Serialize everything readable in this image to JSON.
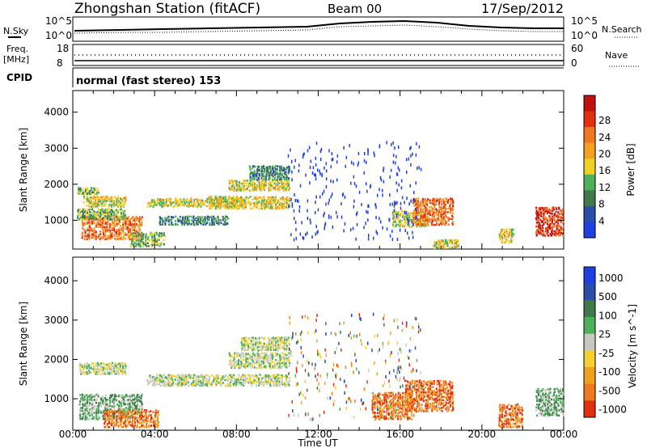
{
  "header": {
    "station": "Zhongshan Station (fitACF)",
    "beam": "Beam 00",
    "date": "17/Sep/2012"
  },
  "noise_panel": {
    "left_label": "N.Sky",
    "left_ticks": [
      "10^5",
      "10^0"
    ],
    "right_label": "N.Search",
    "right_ticks": [
      "10^5",
      "10^0"
    ]
  },
  "freq_panel": {
    "left_label_top": "Freq.",
    "left_label_unit": "[MHz]",
    "left_ticks": [
      "18",
      "8"
    ],
    "right_label": "Nave",
    "right_ticks": [
      "60",
      "0"
    ]
  },
  "cpid_panel": {
    "label": "CPID",
    "text": "normal (fast stereo) 153"
  },
  "x_axis": {
    "label": "Time UT",
    "ticks": [
      "00:00",
      "04:00",
      "08:00",
      "12:00",
      "16:00",
      "20:00",
      "00:00"
    ]
  },
  "colors": {
    "power_scale": [
      "#1f3fe0",
      "#2a4fa8",
      "#3f7a4a",
      "#4fb05a",
      "#f0d020",
      "#f5a020",
      "#f07820",
      "#e03010",
      "#c01010"
    ],
    "velocity_scale": [
      "#1f3fe0",
      "#2a4fa8",
      "#3f7a4a",
      "#4fb05a",
      "#c8c8c0",
      "#f5d030",
      "#f0a020",
      "#f07820",
      "#e03010"
    ]
  },
  "chart_data": [
    {
      "type": "heatmap",
      "title": "",
      "xlabel": "Time UT",
      "ylabel": "Slant Range [km]",
      "xlim": [
        0,
        24
      ],
      "ylim": [
        200,
        4600
      ],
      "y_ticks": [
        1000,
        2000,
        3000,
        4000
      ],
      "colorbar_label": "Power [dB]",
      "colorbar_ticks": [
        "4",
        "8",
        "12",
        "16",
        "20",
        "24",
        "28"
      ],
      "blobs": [
        {
          "x0": 0.4,
          "x1": 3.4,
          "y0": 500,
          "y1": 1150,
          "level": 6
        },
        {
          "x0": 0.2,
          "x1": 2.6,
          "y0": 1050,
          "y1": 1350,
          "level": 3
        },
        {
          "x0": 0.2,
          "x1": 1.3,
          "y0": 1750,
          "y1": 1950,
          "level": 3
        },
        {
          "x0": 0.5,
          "x1": 2.6,
          "y0": 1400,
          "y1": 1700,
          "level": 4
        },
        {
          "x0": 2.8,
          "x1": 4.5,
          "y0": 300,
          "y1": 700,
          "level": 3
        },
        {
          "x0": 3.6,
          "x1": 8.4,
          "y0": 1400,
          "y1": 1650,
          "level": 4
        },
        {
          "x0": 4.2,
          "x1": 7.6,
          "y0": 900,
          "y1": 1150,
          "level": 2
        },
        {
          "x0": 6.6,
          "x1": 10.6,
          "y0": 1350,
          "y1": 1700,
          "level": 4
        },
        {
          "x0": 7.6,
          "x1": 10.6,
          "y0": 1850,
          "y1": 2150,
          "level": 4
        },
        {
          "x0": 8.6,
          "x1": 10.6,
          "y0": 2150,
          "y1": 2550,
          "level": 2
        },
        {
          "x0": 15.6,
          "x1": 17.4,
          "y0": 850,
          "y1": 1300,
          "level": 4
        },
        {
          "x0": 16.6,
          "x1": 18.6,
          "y0": 900,
          "y1": 1650,
          "level": 6
        },
        {
          "x0": 17.6,
          "x1": 18.9,
          "y0": 250,
          "y1": 500,
          "level": 4
        },
        {
          "x0": 22.6,
          "x1": 24.0,
          "y0": 600,
          "y1": 1400,
          "level": 7
        },
        {
          "x0": 20.8,
          "x1": 21.6,
          "y0": 400,
          "y1": 800,
          "level": 4
        }
      ]
    },
    {
      "type": "heatmap",
      "title": "",
      "xlabel": "Time UT",
      "ylabel": "Slant Range [km]",
      "xlim": [
        0,
        24
      ],
      "ylim": [
        200,
        4600
      ],
      "y_ticks": [
        1000,
        2000,
        3000,
        4000
      ],
      "colorbar_label": "Velocity [m s^-1]",
      "colorbar_ticks": [
        "1000",
        "500",
        "100",
        "25",
        "-25",
        "-100",
        "-500",
        "-1000"
      ],
      "blobs": [
        {
          "x0": 0.3,
          "x1": 3.4,
          "y0": 500,
          "y1": 1150,
          "level": 3
        },
        {
          "x0": 0.3,
          "x1": 2.6,
          "y0": 1650,
          "y1": 1950,
          "level": 4
        },
        {
          "x0": 1.5,
          "x1": 4.2,
          "y0": 300,
          "y1": 750,
          "level": 7
        },
        {
          "x0": 3.6,
          "x1": 10.6,
          "y0": 1350,
          "y1": 1650,
          "level": 4
        },
        {
          "x0": 7.6,
          "x1": 10.6,
          "y0": 1800,
          "y1": 2200,
          "level": 4
        },
        {
          "x0": 8.2,
          "x1": 10.6,
          "y0": 2250,
          "y1": 2600,
          "level": 4
        },
        {
          "x0": 14.6,
          "x1": 16.6,
          "y0": 500,
          "y1": 1200,
          "level": 7
        },
        {
          "x0": 16.2,
          "x1": 18.6,
          "y0": 700,
          "y1": 1500,
          "level": 7
        },
        {
          "x0": 20.8,
          "x1": 22.0,
          "y0": 300,
          "y1": 900,
          "level": 7
        },
        {
          "x0": 22.6,
          "x1": 24.0,
          "y0": 600,
          "y1": 1300,
          "level": 3
        }
      ]
    }
  ]
}
